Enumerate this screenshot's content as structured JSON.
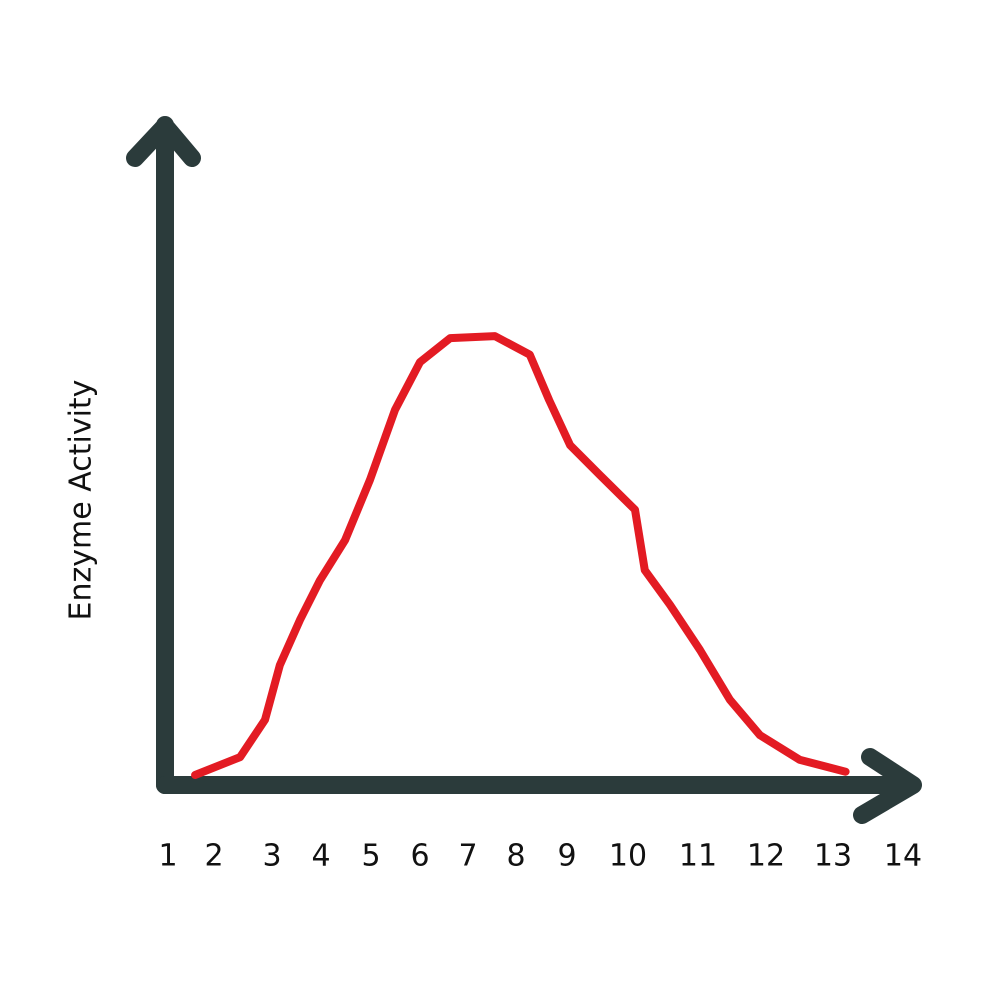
{
  "chart_data": {
    "type": "line",
    "y_label": "Enzyme Activity",
    "x": [
      1.59,
      2.45,
      2.88,
      3.16,
      3.57,
      3.98,
      4.48,
      4.98,
      5.49,
      6.0,
      6.63,
      7.56,
      8.27,
      8.65,
      9.05,
      9.54,
      10.1,
      10.24,
      10.6,
      11.03,
      11.47,
      11.91,
      12.5,
      13.18
    ],
    "values": [
      1.5,
      4.2,
      9.8,
      18,
      24.8,
      30.8,
      36.8,
      45.9,
      56.4,
      63.6,
      67.2,
      67.5,
      64.7,
      57.9,
      51.1,
      46.6,
      41.4,
      32.3,
      27.1,
      20.3,
      12.8,
      7.5,
      3.8,
      2.0
    ],
    "color": "#e31b23",
    "xlim": [
      1,
      14
    ],
    "xticks": [
      1,
      2,
      3,
      4,
      5,
      6,
      7,
      8,
      9,
      10,
      11,
      12,
      13,
      14
    ],
    "ylim": [
      0,
      100
    ]
  }
}
